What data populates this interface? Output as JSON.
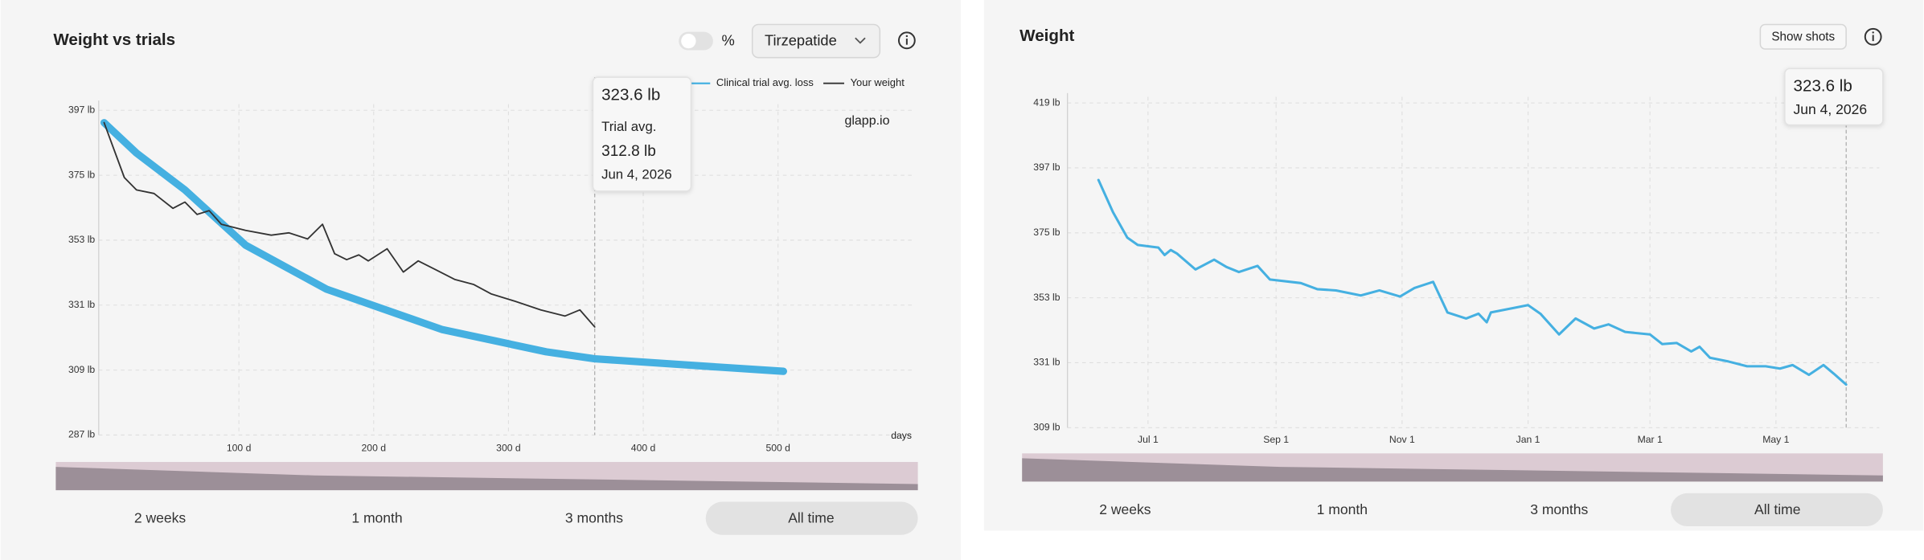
{
  "chart_data": [
    {
      "type": "line",
      "title": "Weight vs trials",
      "toggle_label": "%",
      "dropdown": "Tirzepatide",
      "xlim": [
        -4,
        601
      ],
      "xticks": [
        {
          "value": 100,
          "label": "100 d"
        },
        {
          "value": 200,
          "label": "200 d"
        },
        {
          "value": 300,
          "label": "300 d"
        },
        {
          "value": 400,
          "label": "400 d"
        },
        {
          "value": 500,
          "label": "500 d"
        }
      ],
      "xlabel": "days",
      "watermark": "glapp.io",
      "ylim": [
        287,
        397
      ],
      "yticks": [
        {
          "value": 287,
          "label": "287 lb"
        },
        {
          "value": 309,
          "label": "309 lb"
        },
        {
          "value": 331,
          "label": "331 lb"
        },
        {
          "value": 353,
          "label": "353 lb"
        },
        {
          "value": 375,
          "label": "375 lb"
        },
        {
          "value": 397,
          "label": "397 lb"
        }
      ],
      "grid": true,
      "series": [
        {
          "name": "Clinical trial avg. loss",
          "color": "#45b0e1",
          "width": 6,
          "x": [
            0,
            24,
            60,
            105,
            165,
            251,
            328,
            364,
            433,
            504
          ],
          "values": [
            392.8,
            382.5,
            370,
            351.3,
            336.4,
            322.7,
            315.2,
            312.8,
            310.7,
            308.6
          ]
        },
        {
          "name": "Your weight",
          "color": "#333333",
          "width": 1.2,
          "x": [
            0,
            5,
            15,
            24,
            37,
            51,
            60,
            69,
            78,
            87,
            105,
            124,
            137,
            151,
            162,
            171,
            180,
            189,
            196,
            210,
            222,
            233,
            246,
            260,
            274,
            287,
            305,
            324,
            342,
            353,
            364
          ],
          "values": [
            392.8,
            386.6,
            374.2,
            370,
            368.8,
            363.8,
            365.9,
            361.7,
            363,
            358.4,
            356.3,
            354.7,
            355.5,
            353.4,
            358.4,
            348.4,
            346.4,
            348,
            346,
            350.1,
            342.2,
            346,
            343,
            339.7,
            338,
            334.8,
            332.3,
            329.4,
            327.3,
            329.4,
            323.6
          ]
        }
      ],
      "tooltip": {
        "x": 364,
        "rows": [
          "323.6 lb",
          "Trial avg.",
          "312.8 lb",
          "Jun 4, 2026"
        ]
      },
      "range_buttons": [
        "2 weeks",
        "1 month",
        "3 months",
        "All time"
      ],
      "selected_range": 3
    },
    {
      "type": "line",
      "title": "Weight",
      "button": "Show shots",
      "xlim": [
        -39,
        354
      ],
      "xticks": [
        {
          "value": 0,
          "label": "Jul 1"
        },
        {
          "value": 62,
          "label": "Sep 1"
        },
        {
          "value": 123,
          "label": "Nov 1"
        },
        {
          "value": 184,
          "label": "Jan 1"
        },
        {
          "value": 243,
          "label": "Mar 1"
        },
        {
          "value": 304,
          "label": "May 1"
        }
      ],
      "ylim": [
        309,
        419
      ],
      "yticks": [
        {
          "value": 309,
          "label": "309 lb"
        },
        {
          "value": 331,
          "label": "331 lb"
        },
        {
          "value": 353,
          "label": "353 lb"
        },
        {
          "value": 375,
          "label": "375 lb"
        },
        {
          "value": 397,
          "label": "397 lb"
        },
        {
          "value": 419,
          "label": "419 lb"
        }
      ],
      "grid": true,
      "series": [
        {
          "color": "#45b0e1",
          "width": 2,
          "x": [
            -24,
            -17,
            -10,
            -5,
            5,
            8,
            11,
            14,
            23,
            32,
            38,
            44,
            53,
            59,
            74,
            82,
            91,
            103,
            112,
            122,
            129,
            138,
            145,
            154,
            160,
            164,
            166,
            184,
            190,
            199,
            207,
            216,
            223,
            231,
            243,
            249,
            256,
            263,
            267,
            272,
            281,
            290,
            299,
            306,
            312,
            320,
            327,
            332,
            338
          ],
          "values": [
            392.9,
            382,
            373.4,
            370.9,
            370,
            367.5,
            369.2,
            368,
            362.6,
            365.9,
            363.4,
            361.7,
            363.8,
            359.2,
            358,
            355.9,
            355.5,
            353.8,
            355.5,
            353.4,
            356.3,
            358.4,
            348,
            346,
            347.6,
            344.7,
            348,
            350.5,
            347.6,
            340.6,
            346,
            342.6,
            344,
            341.4,
            340.6,
            337.3,
            337.7,
            334.8,
            336.4,
            332.7,
            331.4,
            329.8,
            329.8,
            329,
            330.2,
            326.9,
            330.2,
            327.3,
            323.6
          ]
        }
      ],
      "tooltip": {
        "x": 338,
        "rows": [
          "323.6 lb",
          "Jun 4, 2026"
        ]
      },
      "range_buttons": [
        "2 weeks",
        "1 month",
        "3 months",
        "All time"
      ],
      "selected_range": 3
    }
  ]
}
